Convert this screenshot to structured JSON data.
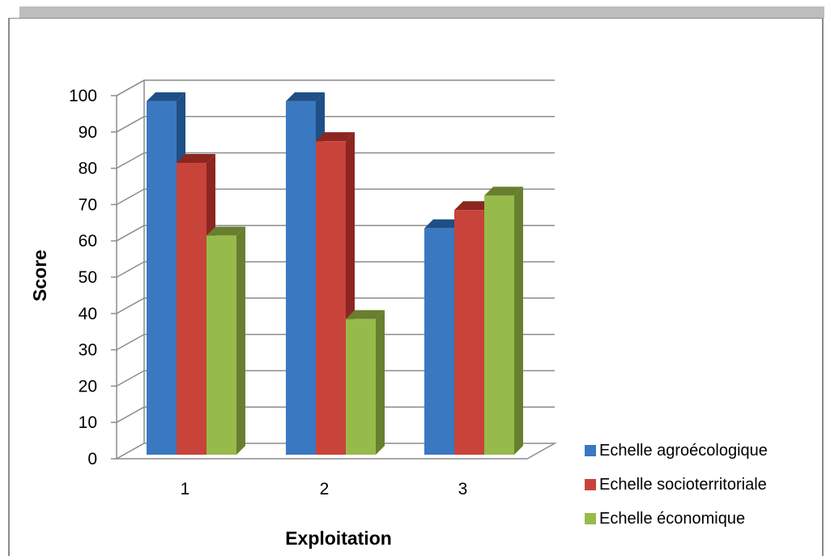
{
  "chart_data": {
    "type": "bar",
    "title": "",
    "xlabel": "Exploitation",
    "ylabel": "Score",
    "categories": [
      "1",
      "2",
      "3"
    ],
    "ylim": [
      0,
      100
    ],
    "yticks": [
      "0",
      "10",
      "20",
      "30",
      "40",
      "50",
      "60",
      "70",
      "80",
      "90",
      "100"
    ],
    "grid": true,
    "legend_position": "bottom-right",
    "series": [
      {
        "name": "Echelle agroécologique",
        "values": [
          94,
          94,
          59
        ],
        "color": "#3a78c2",
        "side_color": "#1e4f86"
      },
      {
        "name": "Echelle socioterritoriale",
        "values": [
          77,
          83,
          64
        ],
        "color": "#c8433a",
        "side_color": "#8c2620"
      },
      {
        "name": "Echelle économique",
        "values": [
          57,
          34,
          68
        ],
        "color": "#97bb4a",
        "side_color": "#687f2f"
      }
    ]
  }
}
